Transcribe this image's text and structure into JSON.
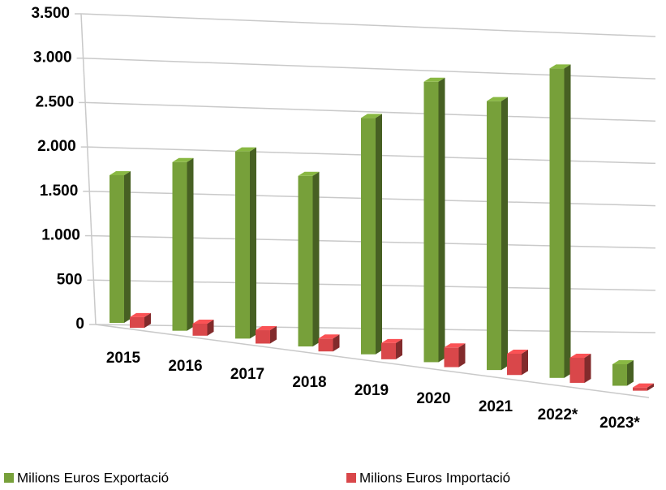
{
  "chart_data": {
    "type": "bar3d",
    "categories": [
      "2015",
      "2016",
      "2017",
      "2018",
      "2019",
      "2020",
      "2021",
      "2022*",
      "2023*"
    ],
    "series": [
      {
        "name": "Milions Euros Exportació",
        "color": "#77a03a",
        "values": [
          1780,
          1960,
          2100,
          1850,
          2480,
          2850,
          2650,
          2960,
          200
        ]
      },
      {
        "name": "Milions Euros Importació",
        "color": "#d9474a",
        "values": [
          130,
          140,
          150,
          140,
          170,
          200,
          210,
          240,
          30
        ]
      }
    ],
    "ylim": [
      0,
      3500
    ],
    "yticks": [
      0,
      500,
      {
        "value": 1000,
        "label": "1.000"
      },
      {
        "value": 1500,
        "label": "1.500"
      },
      {
        "value": 2000,
        "label": "2.000"
      },
      {
        "value": 2500,
        "label": "2.500"
      },
      {
        "value": 3000,
        "label": "3.000"
      },
      {
        "value": 3500,
        "label": "3.500"
      }
    ],
    "grid": true,
    "legend": "bottom"
  }
}
